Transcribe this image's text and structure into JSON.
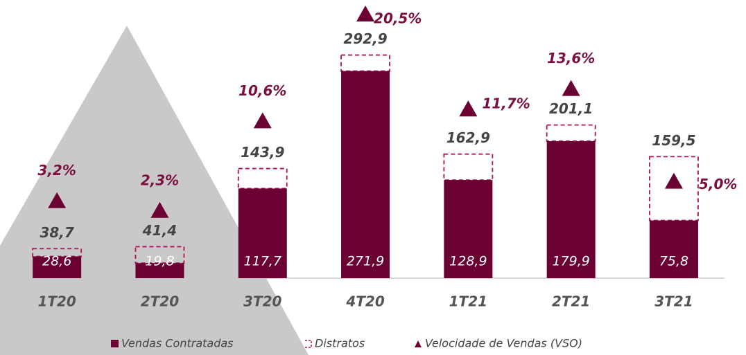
{
  "chart_data": {
    "type": "bar",
    "categories": [
      "1T20",
      "2T20",
      "3T20",
      "4T20",
      "1T21",
      "2T21",
      "3T21"
    ],
    "series": [
      {
        "name": "Vendas Contratadas",
        "color": "#6b0033",
        "values": [
          28.6,
          19.8,
          117.7,
          271.9,
          128.9,
          179.9,
          75.8
        ],
        "value_labels": [
          "28,6",
          "19,8",
          "117,7",
          "271,9",
          "128,9",
          "179,9",
          "75,8"
        ]
      },
      {
        "name": "Distratos",
        "color": "#b0105a",
        "style": "dashed"
      },
      {
        "name": "Velocidade de Vendas (VSO)",
        "color": "#6b0033",
        "axis": "y2",
        "marker": "triangle",
        "values": [
          3.2,
          2.3,
          10.6,
          20.5,
          11.7,
          13.6,
          5.0
        ],
        "value_labels": [
          "3,2%",
          "2,3%",
          "10,6%",
          "20,5%",
          "11,7%",
          "13,6%",
          "5,0%"
        ]
      }
    ],
    "totals": [
      38.7,
      41.4,
      143.9,
      292.9,
      162.9,
      201.1,
      159.5
    ],
    "total_labels": [
      "38,7",
      "41,4",
      "143,9",
      "292,9",
      "162,9",
      "201,1",
      "159,5"
    ],
    "ylim": [
      0,
      347
    ],
    "y2lim": [
      -4,
      20.5
    ],
    "grid": false,
    "legend": "bottom"
  }
}
